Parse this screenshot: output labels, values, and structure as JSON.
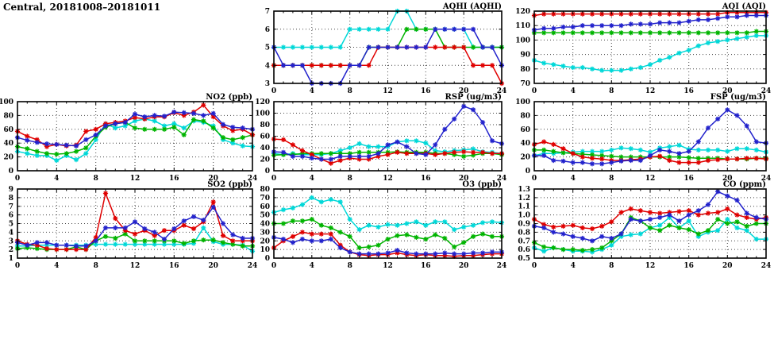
{
  "page_title": "Central, 20181008–20181011",
  "colors": {
    "red": "#e00000",
    "blue": "#2222cc",
    "green": "#00b400",
    "cyan": "#00d8d8",
    "grid": "#444444",
    "axis": "#000000"
  },
  "x_axis": {
    "range": [
      0,
      24
    ],
    "ticks": [
      0,
      4,
      8,
      12,
      16,
      20,
      24
    ],
    "minor_step": 1
  },
  "chart_data": [
    {
      "id": "aqhi",
      "type": "line",
      "title": "AQHI (AQHI)",
      "ylim": [
        3,
        7
      ],
      "y_ticks": [
        3,
        4,
        5,
        6,
        7
      ],
      "series": [
        {
          "name": "series-cyan",
          "color": "cyan",
          "values": [
            5,
            5,
            5,
            5,
            5,
            5,
            5,
            5,
            6,
            6,
            6,
            6,
            6,
            7,
            7,
            6,
            6,
            6,
            6,
            6,
            6,
            5,
            5,
            5,
            5
          ]
        },
        {
          "name": "series-green",
          "color": "green",
          "values": [
            4,
            4,
            4,
            4,
            4,
            4,
            4,
            4,
            4,
            4,
            5,
            5,
            5,
            5,
            6,
            6,
            6,
            6,
            5,
            5,
            5,
            5,
            5,
            5,
            5
          ]
        },
        {
          "name": "series-red",
          "color": "red",
          "values": [
            4,
            4,
            4,
            4,
            4,
            4,
            4,
            4,
            4,
            4,
            4,
            5,
            5,
            5,
            5,
            5,
            5,
            5,
            5,
            5,
            5,
            4,
            4,
            4,
            3
          ]
        },
        {
          "name": "series-blue",
          "color": "blue",
          "values": [
            5,
            4,
            4,
            4,
            3,
            3,
            3,
            3,
            4,
            4,
            5,
            5,
            5,
            5,
            5,
            5,
            5,
            6,
            6,
            6,
            6,
            6,
            5,
            5,
            4
          ]
        }
      ]
    },
    {
      "id": "aqi",
      "type": "line",
      "title": "AQI (AQI)",
      "ylim": [
        70,
        120
      ],
      "y_ticks": [
        70,
        80,
        90,
        100,
        110,
        120
      ],
      "series": [
        {
          "name": "series-cyan",
          "color": "cyan",
          "values": [
            86,
            84,
            83,
            82,
            81,
            81,
            80,
            79,
            79,
            79,
            80,
            81,
            83,
            86,
            88,
            91,
            93,
            96,
            98,
            99,
            100,
            101,
            102,
            103,
            103
          ]
        },
        {
          "name": "series-green",
          "color": "green",
          "values": [
            105,
            105,
            105,
            105,
            105,
            105,
            105,
            105,
            105,
            105,
            105,
            105,
            105,
            105,
            105,
            105,
            105,
            105,
            105,
            105,
            105,
            105,
            105,
            106,
            106
          ]
        },
        {
          "name": "series-red",
          "color": "red",
          "values": [
            117,
            118,
            118,
            118,
            118,
            118,
            118,
            118,
            118,
            118,
            118,
            118,
            118,
            118,
            118,
            118,
            118,
            118,
            118,
            118,
            119,
            119,
            119,
            119,
            119
          ]
        },
        {
          "name": "series-blue",
          "color": "blue",
          "values": [
            107,
            108,
            108,
            109,
            109,
            110,
            110,
            110,
            110,
            110,
            111,
            111,
            111,
            112,
            112,
            112,
            113,
            114,
            114,
            115,
            116,
            116,
            117,
            117,
            117
          ]
        }
      ]
    },
    {
      "id": "no2",
      "type": "line",
      "title": "NO2 (ppb)",
      "ylim": [
        0,
        100
      ],
      "y_ticks": [
        0,
        20,
        40,
        60,
        80,
        100
      ],
      "series": [
        {
          "name": "series-cyan",
          "color": "cyan",
          "values": [
            28,
            25,
            22,
            22,
            15,
            22,
            16,
            25,
            45,
            68,
            62,
            65,
            72,
            75,
            72,
            65,
            68,
            62,
            72,
            70,
            65,
            45,
            40,
            36,
            35
          ]
        },
        {
          "name": "series-green",
          "color": "green",
          "values": [
            35,
            32,
            28,
            25,
            24,
            25,
            28,
            33,
            50,
            63,
            68,
            70,
            62,
            60,
            60,
            60,
            63,
            52,
            74,
            72,
            62,
            48,
            45,
            48,
            52
          ]
        },
        {
          "name": "series-red",
          "color": "red",
          "values": [
            57,
            50,
            45,
            35,
            38,
            36,
            37,
            57,
            60,
            68,
            70,
            72,
            77,
            75,
            78,
            78,
            84,
            80,
            85,
            95,
            78,
            65,
            58,
            60,
            52
          ]
        },
        {
          "name": "series-blue",
          "color": "blue",
          "values": [
            48,
            44,
            41,
            39,
            38,
            37,
            36,
            45,
            52,
            65,
            68,
            70,
            82,
            78,
            80,
            79,
            85,
            84,
            83,
            80,
            83,
            67,
            63,
            62,
            60
          ]
        }
      ]
    },
    {
      "id": "rsp",
      "type": "line",
      "title": "RSP (ug/m3)",
      "ylim": [
        0,
        120
      ],
      "y_ticks": [
        0,
        20,
        40,
        60,
        80,
        100,
        120
      ],
      "series": [
        {
          "name": "series-cyan",
          "color": "cyan",
          "values": [
            30,
            28,
            30,
            28,
            28,
            28,
            30,
            35,
            40,
            47,
            42,
            42,
            42,
            50,
            52,
            52,
            48,
            35,
            33,
            35,
            36,
            38,
            33,
            32,
            30
          ]
        },
        {
          "name": "series-green",
          "color": "green",
          "values": [
            27,
            28,
            28,
            30,
            30,
            30,
            30,
            30,
            30,
            32,
            32,
            32,
            32,
            33,
            32,
            32,
            32,
            30,
            30,
            28,
            25,
            27,
            30,
            30,
            28
          ]
        },
        {
          "name": "series-red",
          "color": "red",
          "values": [
            55,
            54,
            45,
            35,
            28,
            20,
            13,
            18,
            22,
            20,
            20,
            25,
            28,
            32,
            30,
            30,
            30,
            28,
            30,
            32,
            33,
            32,
            32,
            30,
            30
          ]
        },
        {
          "name": "series-blue",
          "color": "blue",
          "values": [
            33,
            32,
            25,
            25,
            22,
            20,
            20,
            25,
            25,
            25,
            25,
            30,
            45,
            50,
            42,
            30,
            28,
            45,
            72,
            90,
            112,
            106,
            84,
            52,
            47
          ]
        }
      ]
    },
    {
      "id": "fsp",
      "type": "line",
      "title": "FSP (ug/m3)",
      "ylim": [
        0,
        100
      ],
      "y_ticks": [
        0,
        20,
        40,
        60,
        80,
        100
      ],
      "series": [
        {
          "name": "series-cyan",
          "color": "cyan",
          "values": [
            22,
            25,
            25,
            26,
            27,
            28,
            28,
            28,
            30,
            33,
            32,
            30,
            27,
            33,
            35,
            37,
            31,
            30,
            30,
            30,
            28,
            32,
            32,
            30,
            27
          ]
        },
        {
          "name": "series-green",
          "color": "green",
          "values": [
            30,
            30,
            28,
            26,
            25,
            24,
            23,
            22,
            21,
            20,
            20,
            20,
            20,
            20,
            20,
            20,
            19,
            18,
            18,
            18,
            17,
            17,
            17,
            18,
            18
          ]
        },
        {
          "name": "series-red",
          "color": "red",
          "values": [
            38,
            42,
            38,
            32,
            25,
            20,
            18,
            17,
            15,
            15,
            16,
            17,
            20,
            21,
            15,
            12,
            12,
            12,
            15,
            16,
            17,
            17,
            18,
            18,
            17
          ]
        },
        {
          "name": "series-blue",
          "color": "blue",
          "values": [
            22,
            22,
            15,
            14,
            12,
            12,
            10,
            10,
            12,
            14,
            15,
            15,
            22,
            30,
            28,
            25,
            28,
            42,
            62,
            75,
            88,
            80,
            65,
            42,
            40
          ]
        }
      ]
    },
    {
      "id": "so2",
      "type": "line",
      "title": "SO2 (ppb)",
      "ylim": [
        1,
        9
      ],
      "y_ticks": [
        1,
        2,
        3,
        4,
        5,
        6,
        7,
        8,
        9
      ],
      "series": [
        {
          "name": "series-cyan",
          "color": "cyan",
          "values": [
            2.4,
            2.4,
            2.5,
            2.5,
            2.5,
            2.5,
            2.5,
            2.5,
            2.6,
            2.6,
            2.6,
            2.6,
            2.6,
            2.6,
            2.6,
            2.6,
            2.6,
            2.6,
            2.7,
            4.5,
            2.9,
            2.6,
            2.6,
            2.5,
            1.8
          ]
        },
        {
          "name": "series-green",
          "color": "green",
          "values": [
            2.1,
            2.2,
            2.1,
            2.0,
            2.0,
            2.0,
            2.3,
            2.0,
            3.0,
            3.5,
            3.3,
            3.8,
            3.0,
            3.0,
            3.0,
            3.0,
            3.0,
            2.7,
            3.0,
            3.1,
            3.1,
            2.8,
            2.6,
            2.4,
            2.4
          ]
        },
        {
          "name": "series-red",
          "color": "red",
          "values": [
            3.0,
            2.6,
            2.5,
            2.1,
            2.0,
            2.0,
            2.0,
            2.0,
            3.4,
            8.5,
            5.6,
            4.2,
            3.8,
            4.2,
            3.6,
            4.2,
            4.2,
            4.8,
            4.4,
            5.2,
            7.5,
            3.6,
            3.0,
            3.0,
            3.0
          ]
        },
        {
          "name": "series-blue",
          "color": "blue",
          "values": [
            2.8,
            2.5,
            2.8,
            2.8,
            2.5,
            2.5,
            2.4,
            2.4,
            3.0,
            4.5,
            4.5,
            4.5,
            5.2,
            4.4,
            4.0,
            3.2,
            4.4,
            5.3,
            5.8,
            5.4,
            6.9,
            5.0,
            3.7,
            3.3,
            3.3
          ]
        }
      ]
    },
    {
      "id": "o3",
      "type": "line",
      "title": "O3 (ppb)",
      "ylim": [
        0,
        80
      ],
      "y_ticks": [
        0,
        10,
        20,
        30,
        40,
        50,
        60,
        70,
        80
      ],
      "series": [
        {
          "name": "series-cyan",
          "color": "cyan",
          "values": [
            53,
            56,
            58,
            62,
            70,
            65,
            68,
            65,
            45,
            33,
            38,
            36,
            39,
            38,
            40,
            42,
            38,
            42,
            42,
            33,
            36,
            38,
            41,
            42,
            41
          ]
        },
        {
          "name": "series-green",
          "color": "green",
          "values": [
            40,
            40,
            43,
            43,
            45,
            38,
            35,
            30,
            25,
            12,
            13,
            15,
            22,
            26,
            27,
            24,
            22,
            27,
            23,
            13,
            18,
            25,
            28,
            25,
            25
          ]
        },
        {
          "name": "series-red",
          "color": "red",
          "values": [
            12,
            20,
            25,
            30,
            28,
            28,
            28,
            15,
            7,
            4,
            3,
            4,
            4,
            6,
            4,
            3,
            4,
            3,
            3,
            2,
            3,
            3,
            4,
            5,
            5
          ]
        },
        {
          "name": "series-blue",
          "color": "blue",
          "values": [
            24,
            22,
            18,
            22,
            20,
            20,
            22,
            12,
            7,
            5,
            5,
            5,
            6,
            9,
            6,
            5,
            5,
            5,
            6,
            5,
            5,
            6,
            6,
            7,
            7
          ]
        }
      ]
    },
    {
      "id": "co",
      "type": "line",
      "title": "CO (ppm)",
      "ylim": [
        0.5,
        1.3
      ],
      "y_ticks": [
        0.5,
        0.6,
        0.7,
        0.8,
        0.9,
        1.0,
        1.1,
        1.2,
        1.3
      ],
      "series": [
        {
          "name": "series-cyan",
          "color": "cyan",
          "values": [
            0.62,
            0.58,
            0.62,
            0.6,
            0.58,
            0.58,
            0.57,
            0.6,
            0.65,
            0.75,
            0.77,
            0.78,
            0.85,
            0.88,
            0.97,
            0.85,
            0.93,
            0.75,
            0.8,
            0.82,
            0.95,
            0.85,
            0.82,
            0.72,
            0.72
          ]
        },
        {
          "name": "series-green",
          "color": "green",
          "values": [
            0.68,
            0.63,
            0.62,
            0.6,
            0.6,
            0.59,
            0.6,
            0.62,
            0.7,
            0.78,
            0.97,
            0.93,
            0.85,
            0.82,
            0.88,
            0.85,
            0.83,
            0.78,
            0.82,
            0.95,
            0.9,
            0.92,
            0.87,
            0.9,
            0.9
          ]
        },
        {
          "name": "series-red",
          "color": "red",
          "values": [
            0.95,
            0.89,
            0.86,
            0.87,
            0.88,
            0.85,
            0.84,
            0.87,
            0.92,
            1.03,
            1.07,
            1.05,
            1.03,
            1.02,
            1.03,
            1.04,
            1.05,
            1.0,
            1.02,
            1.03,
            1.07,
            1.0,
            0.97,
            0.95,
            0.97
          ]
        },
        {
          "name": "series-blue",
          "color": "blue",
          "values": [
            0.87,
            0.85,
            0.8,
            0.78,
            0.75,
            0.73,
            0.7,
            0.75,
            0.73,
            0.78,
            0.95,
            0.93,
            0.95,
            0.97,
            1.0,
            0.93,
            1.0,
            1.05,
            1.12,
            1.27,
            1.22,
            1.17,
            1.02,
            0.97,
            0.95
          ]
        }
      ]
    }
  ]
}
